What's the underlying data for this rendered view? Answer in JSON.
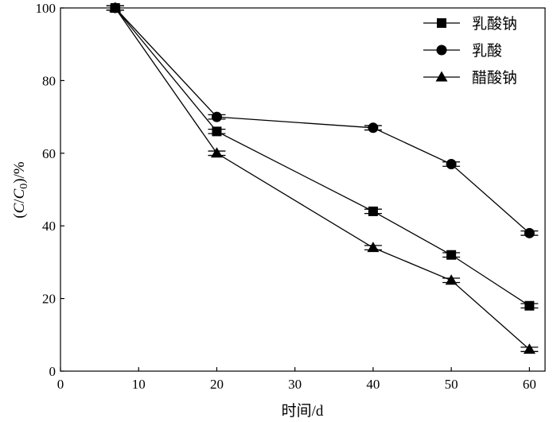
{
  "chart_data": {
    "type": "line",
    "xlabel": "时间/d",
    "ylabel_parts": [
      "(",
      "C",
      "/",
      "C",
      "0",
      ")/%"
    ],
    "xlim": [
      0,
      62
    ],
    "ylim": [
      0,
      100
    ],
    "xticks": [
      0,
      10,
      20,
      30,
      40,
      50,
      60
    ],
    "yticks": [
      0,
      20,
      40,
      60,
      80,
      100
    ],
    "grid": false,
    "legend_position": "top-right",
    "x": [
      7,
      20,
      40,
      50,
      60
    ],
    "series": [
      {
        "name": "乳酸钠",
        "marker": "square",
        "values": [
          100,
          66,
          44,
          32,
          18
        ]
      },
      {
        "name": "乳酸",
        "marker": "circle",
        "values": [
          100,
          70,
          67,
          57,
          38
        ]
      },
      {
        "name": "醋酸钠",
        "marker": "triangle",
        "values": [
          100,
          60,
          34,
          25,
          6
        ]
      }
    ],
    "errors": [
      0.6,
      0.6,
      0.6,
      0.6,
      0.6
    ]
  }
}
